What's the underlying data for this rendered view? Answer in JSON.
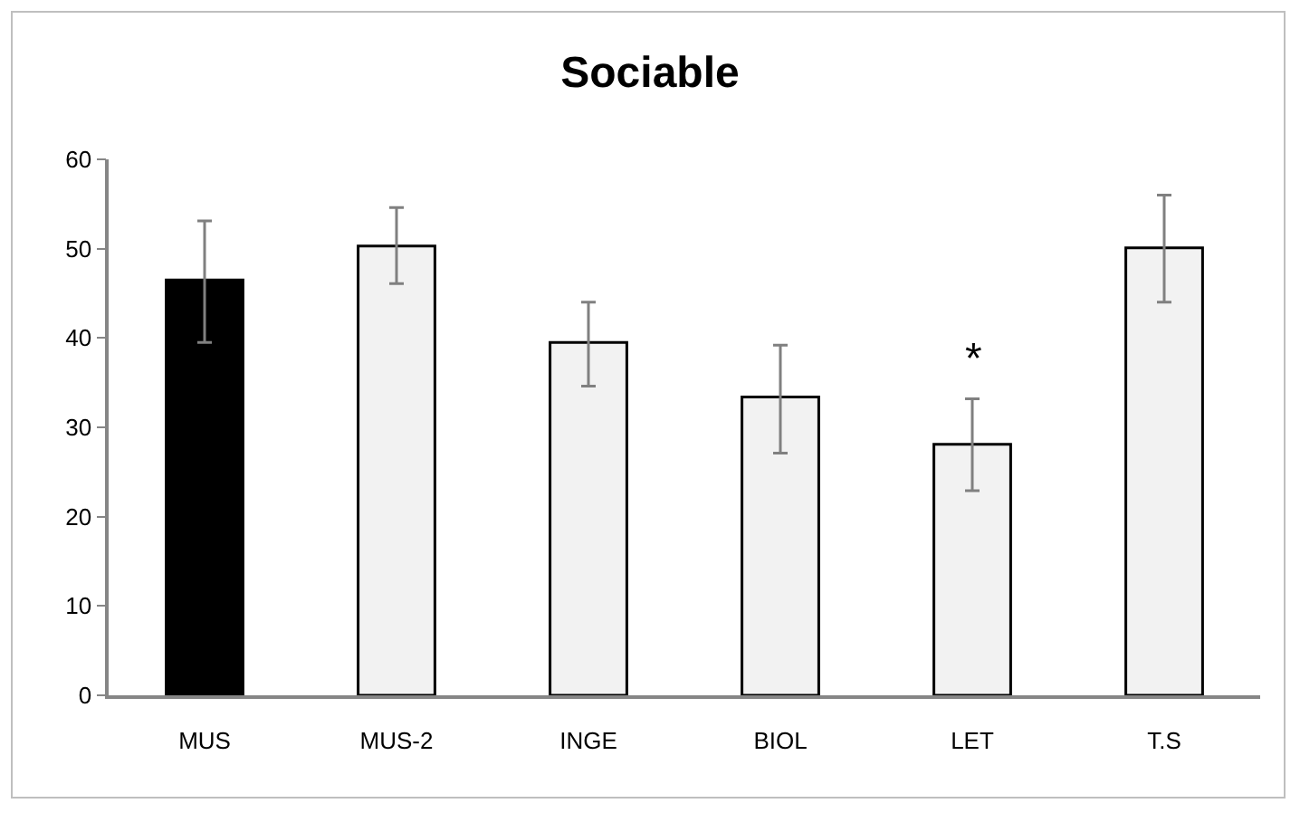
{
  "chart_data": {
    "type": "bar",
    "title": "Sociable",
    "categories": [
      "MUS",
      "MUS-2",
      "INGE",
      "BIOL",
      "LET",
      "T.S"
    ],
    "values": [
      46.5,
      50.3,
      39.5,
      33.4,
      28.1,
      50.1
    ],
    "colors": [
      "#000000",
      "#f2f2f2",
      "#f2f2f2",
      "#f2f2f2",
      "#f2f2f2",
      "#f2f2f2"
    ],
    "errors": [
      [
        39.5,
        53.1
      ],
      [
        46.1,
        54.6
      ],
      [
        34.6,
        44.0
      ],
      [
        27.1,
        39.2
      ],
      [
        22.9,
        33.2
      ],
      [
        44.0,
        56.0
      ]
    ],
    "ylim": [
      0,
      60
    ],
    "yticks": [
      0,
      10,
      20,
      30,
      40,
      50,
      60
    ],
    "grid": false,
    "annotations": [
      {
        "text": "*",
        "x": "LET",
        "y": 33.2
      }
    ]
  }
}
